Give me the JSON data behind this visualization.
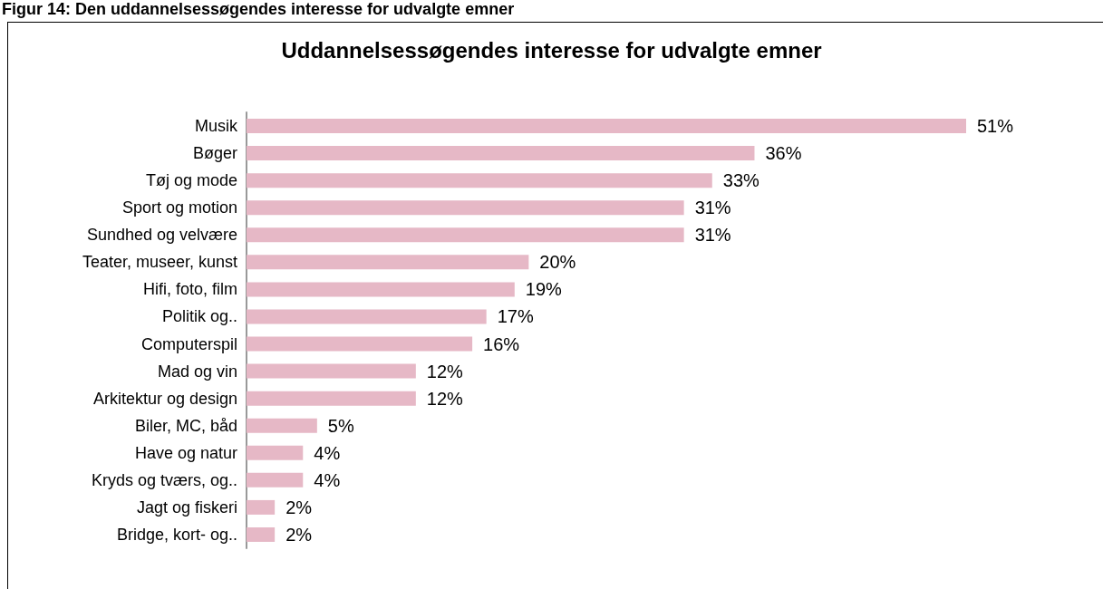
{
  "chart_data": {
    "type": "bar",
    "orientation": "horizontal",
    "title": "Uddannelsessøgendes interesse for udvalgte emner",
    "annotations": [
      "Figur 14: Den uddannelsessøgendes interesse for udvalgte emner"
    ],
    "categories": [
      "Musik",
      "Bøger",
      "Tøj og mode",
      "Sport og motion",
      "Sundhed og velvære",
      "Teater, museer, kunst",
      "Hifi, foto, film",
      "Politik og..",
      "Computerspil",
      "Mad og vin",
      "Arkitektur og design",
      "Biler, MC, båd",
      "Have og natur",
      "Kryds og tværs, og..",
      "Jagt og fiskeri",
      "Bridge, kort- og.."
    ],
    "values": [
      51,
      36,
      33,
      31,
      31,
      20,
      19,
      17,
      16,
      12,
      12,
      5,
      4,
      4,
      2,
      2
    ],
    "value_labels": [
      "51%",
      "36%",
      "33%",
      "31%",
      "31%",
      "20%",
      "19%",
      "17%",
      "16%",
      "12%",
      "12%",
      "5%",
      "4%",
      "4%",
      "2%",
      "2%"
    ],
    "color": "#e6b8c6",
    "grid": false
  }
}
